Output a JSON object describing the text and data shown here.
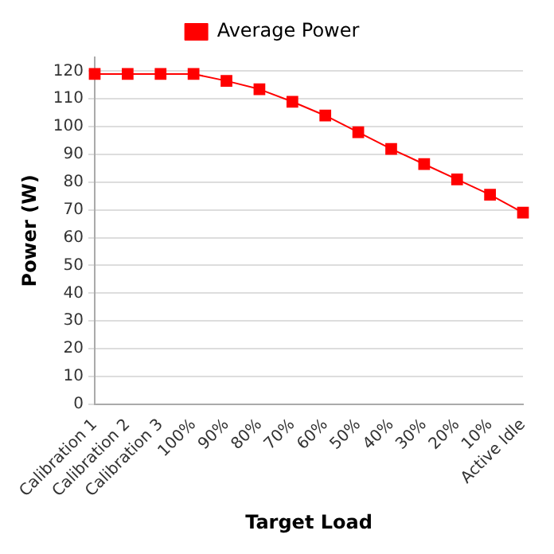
{
  "chart_data": {
    "type": "line",
    "xlabel": "Target Load",
    "ylabel": "Power (W)",
    "categories": [
      "Calibration 1",
      "Calibration 2",
      "Calibration 3",
      "100%",
      "90%",
      "80%",
      "70%",
      "60%",
      "50%",
      "40%",
      "30%",
      "20%",
      "10%",
      "Active Idle"
    ],
    "series": [
      {
        "name": "Average Power",
        "color": "#ff0000",
        "values": [
          119,
          119,
          119,
          119,
          116.5,
          113.5,
          109,
          104,
          98,
          92,
          86.5,
          81,
          75.5,
          69
        ]
      }
    ],
    "ylim": [
      0,
      125
    ],
    "yticks": [
      0,
      10,
      20,
      30,
      40,
      50,
      60,
      70,
      80,
      90,
      100,
      110,
      120
    ],
    "grid": "y",
    "legend": "top",
    "marker": "square",
    "line_style": "solid"
  }
}
